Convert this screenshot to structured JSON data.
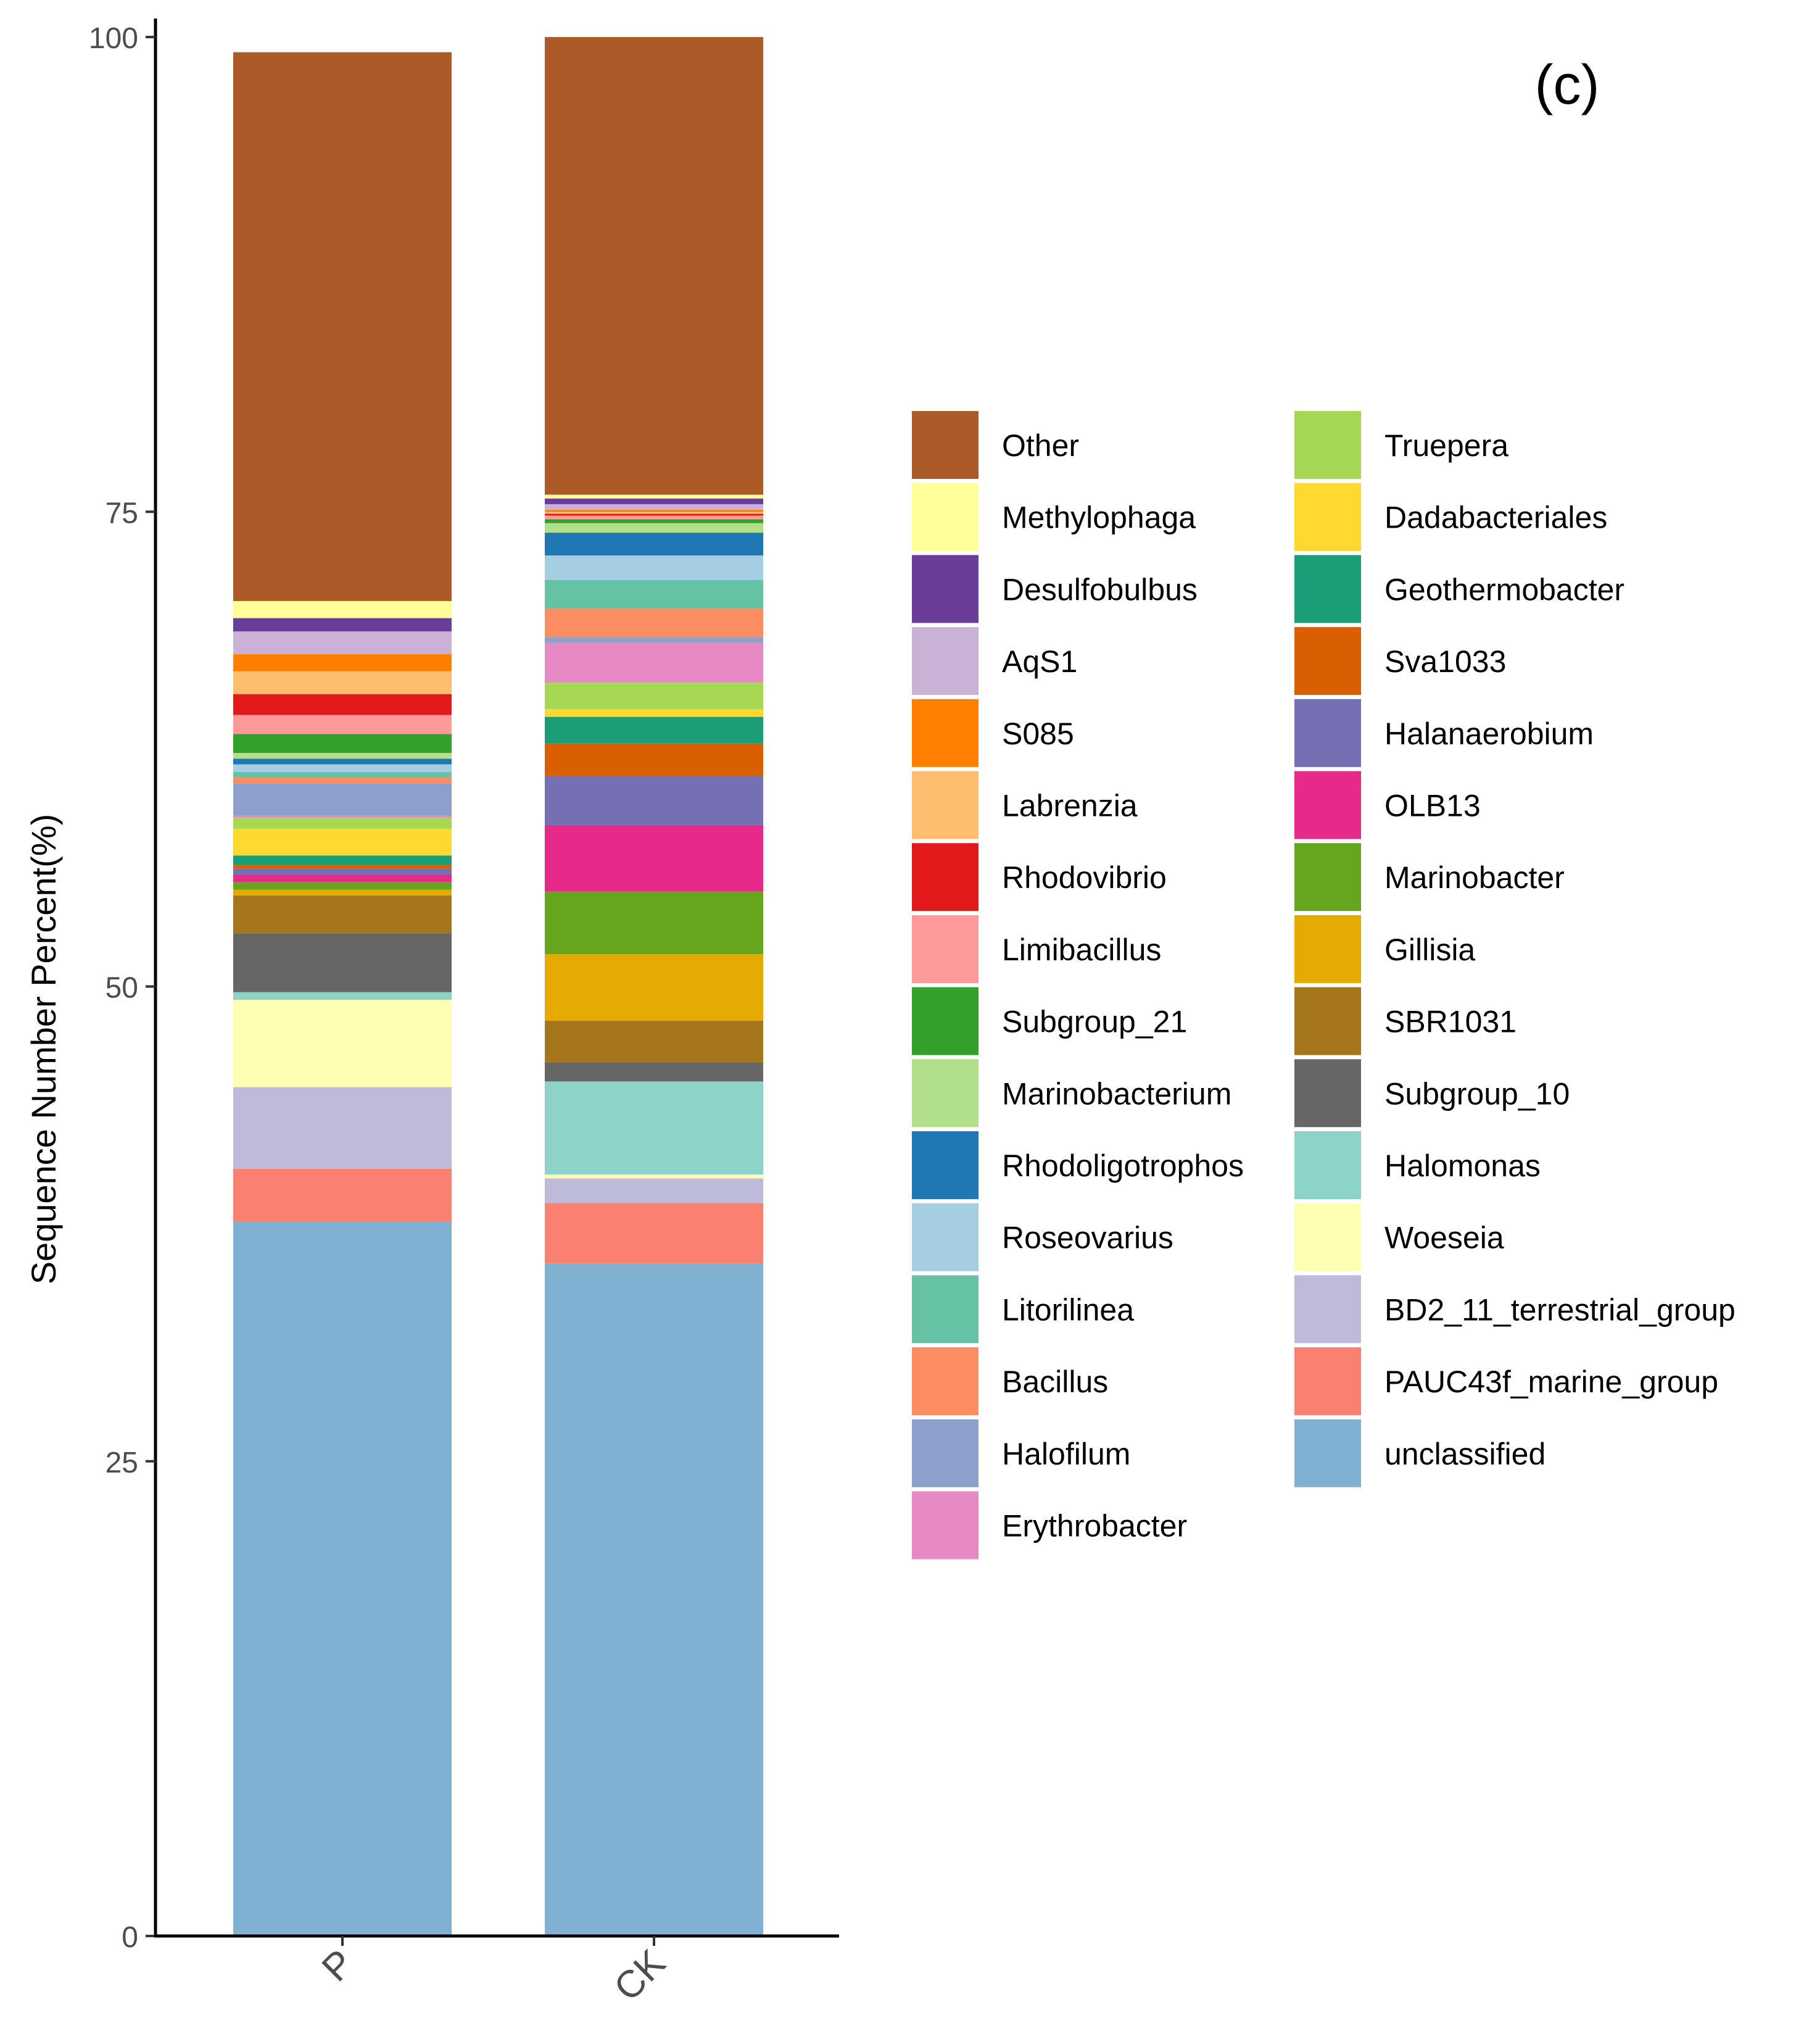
{
  "panel_label": "(c)",
  "chart_data": {
    "type": "bar",
    "stacked": true,
    "ylabel": "Sequence Number Percent(%)",
    "xlabel": "",
    "ylim": [
      0,
      100
    ],
    "yticks": [
      0,
      25,
      50,
      75,
      100
    ],
    "categories": [
      "P",
      "CK"
    ],
    "legend_position": "right",
    "series": [
      {
        "name": "unclassified",
        "color": "#80B1D3",
        "values": [
          37.6,
          35.4
        ]
      },
      {
        "name": "PAUC43f_marine_group",
        "color": "#FA8072",
        "values": [
          2.8,
          3.2
        ]
      },
      {
        "name": "BD2_11_terrestrial_group",
        "color": "#BEBADA",
        "values": [
          4.3,
          1.3
        ]
      },
      {
        "name": "Woeseia",
        "color": "#FFFFB3",
        "values": [
          4.6,
          0.2
        ]
      },
      {
        "name": "Halomonas",
        "color": "#8DD3C7",
        "values": [
          0.4,
          4.9
        ]
      },
      {
        "name": "Subgroup_10",
        "color": "#666666",
        "values": [
          3.1,
          1.0
        ]
      },
      {
        "name": "SBR1031",
        "color": "#A6761D",
        "values": [
          2.0,
          2.2
        ]
      },
      {
        "name": "Gillisia",
        "color": "#E6AB02",
        "values": [
          0.3,
          3.5
        ]
      },
      {
        "name": "Marinobacter",
        "color": "#66A61E",
        "values": [
          0.4,
          3.3
        ]
      },
      {
        "name": "OLB13",
        "color": "#E7298A",
        "values": [
          0.4,
          3.5
        ]
      },
      {
        "name": "Halanaerobium",
        "color": "#7570B3",
        "values": [
          0.3,
          2.6
        ]
      },
      {
        "name": "Sva1033",
        "color": "#D95F02",
        "values": [
          0.2,
          1.7
        ]
      },
      {
        "name": "Geothermobacter",
        "color": "#1B9E77",
        "values": [
          0.5,
          1.4
        ]
      },
      {
        "name": "Dadabacteriales",
        "color": "#FFD92F",
        "values": [
          1.4,
          0.4
        ]
      },
      {
        "name": "Truepera",
        "color": "#A6D854",
        "values": [
          0.6,
          1.4
        ]
      },
      {
        "name": "Erythrobacter",
        "color": "#E78AC3",
        "values": [
          0.1,
          2.1
        ]
      },
      {
        "name": "Halofilum",
        "color": "#8DA0CB",
        "values": [
          1.7,
          0.3
        ]
      },
      {
        "name": "Bacillus",
        "color": "#FC8D62",
        "values": [
          0.3,
          1.5
        ]
      },
      {
        "name": "Litorilinea",
        "color": "#66C2A5",
        "values": [
          0.3,
          1.5
        ]
      },
      {
        "name": "Roseovarius",
        "color": "#A6CEE3",
        "values": [
          0.4,
          1.3
        ]
      },
      {
        "name": "Rhodoligotrophos",
        "color": "#1F78B4",
        "values": [
          0.3,
          1.2
        ]
      },
      {
        "name": "Marinobacterium",
        "color": "#B2DF8A",
        "values": [
          0.3,
          0.5
        ]
      },
      {
        "name": "Subgroup_21",
        "color": "#33A02C",
        "values": [
          1.0,
          0.2
        ]
      },
      {
        "name": "Limibacillus",
        "color": "#FB9A99",
        "values": [
          1.0,
          0.2
        ]
      },
      {
        "name": "Rhodovibrio",
        "color": "#E31A1C",
        "values": [
          1.1,
          0.1
        ]
      },
      {
        "name": "Labrenzia",
        "color": "#FDBF6F",
        "values": [
          1.2,
          0.1
        ]
      },
      {
        "name": "S085",
        "color": "#FF7F00",
        "values": [
          0.9,
          0.1
        ]
      },
      {
        "name": "AqS1",
        "color": "#CAB2D6",
        "values": [
          1.2,
          0.3
        ]
      },
      {
        "name": "Desulfobulbus",
        "color": "#6A3D9A",
        "values": [
          0.7,
          0.3
        ]
      },
      {
        "name": "Methylophaga",
        "color": "#FFFF99",
        "values": [
          0.9,
          0.2
        ]
      },
      {
        "name": "Other",
        "color": "#AD5A29",
        "values": [
          28.9,
          24.1
        ]
      }
    ],
    "legend_order": [
      "Other",
      "Methylophaga",
      "Desulfobulbus",
      "AqS1",
      "S085",
      "Labrenzia",
      "Rhodovibrio",
      "Limibacillus",
      "Subgroup_21",
      "Marinobacterium",
      "Rhodoligotrophos",
      "Roseovarius",
      "Litorilinea",
      "Bacillus",
      "Halofilum",
      "Erythrobacter",
      "Truepera",
      "Dadabacteriales",
      "Geothermobacter",
      "Sva1033",
      "Halanaerobium",
      "OLB13",
      "Marinobacter",
      "Gillisia",
      "SBR1031",
      "Subgroup_10",
      "Halomonas",
      "Woeseia",
      "BD2_11_terrestrial_group",
      "PAUC43f_marine_group",
      "unclassified"
    ]
  }
}
